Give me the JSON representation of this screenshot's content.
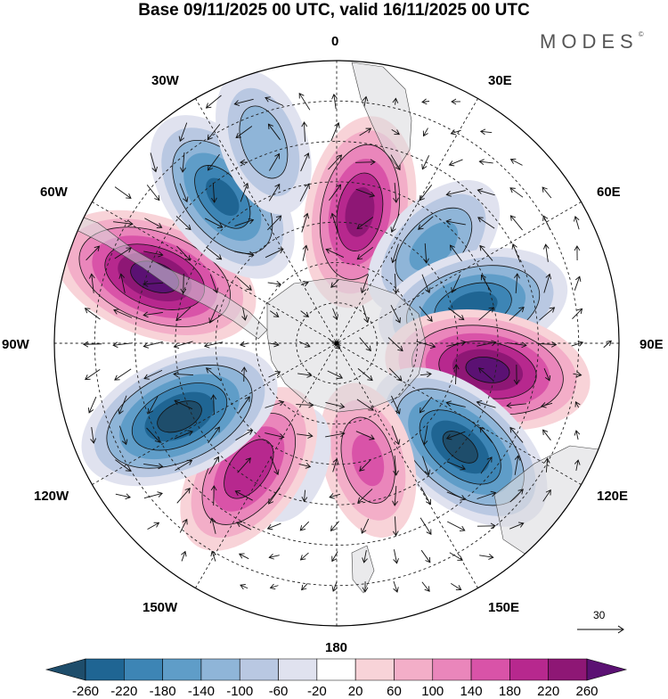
{
  "title": "Base 09/11/2025 00 UTC, valid 16/11/2025 00 UTC",
  "brand": "MODES",
  "brand_mark": "©",
  "longitude_labels": {
    "lon_0": "0",
    "lon_30e": "30E",
    "lon_60e": "60E",
    "lon_90e": "90E",
    "lon_120e": "120E",
    "lon_150e": "150E",
    "lon_180": "180",
    "lon_150w": "150W",
    "lon_120w": "120W",
    "lon_90w": "90W",
    "lon_60w": "60W",
    "lon_30w": "30W"
  },
  "vector_scale_label": "30",
  "colorbar": {
    "tick_labels": [
      "-260",
      "-220",
      "-180",
      "-140",
      "-100",
      "-60",
      "-20",
      "20",
      "60",
      "100",
      "140",
      "180",
      "220",
      "260"
    ],
    "colors": [
      "#1e4d6b",
      "#1f6593",
      "#3d85b5",
      "#5f9dc8",
      "#8fb5d8",
      "#b9c8e2",
      "#e0e2ef",
      "#ffffff",
      "#f8d3d8",
      "#f3aec8",
      "#ea86bb",
      "#d953a8",
      "#b7288e",
      "#8e1775",
      "#5b1173"
    ]
  },
  "chart_data": {
    "type": "heatmap",
    "projection": "south polar stereographic",
    "title": "Base 09/11/2025 00 UTC, valid 16/11/2025 00 UTC",
    "levels": [
      -260,
      -220,
      -180,
      -140,
      -100,
      -60,
      -20,
      20,
      60,
      100,
      140,
      180,
      220,
      260
    ],
    "anomaly_centers": [
      {
        "lon": 10,
        "lat": -57,
        "value": 230
      },
      {
        "lon": 45,
        "lat": -56,
        "value": -150
      },
      {
        "lon": 75,
        "lat": -55,
        "value": -230
      },
      {
        "lon": 100,
        "lat": -52,
        "value": 265
      },
      {
        "lon": 130,
        "lat": -50,
        "value": -260
      },
      {
        "lon": 165,
        "lat": -60,
        "value": 140
      },
      {
        "lon": -160,
        "lat": -58,
        "value": -40
      },
      {
        "lon": -145,
        "lat": -52,
        "value": 210
      },
      {
        "lon": -115,
        "lat": -47,
        "value": -270
      },
      {
        "lon": -70,
        "lat": -42,
        "value": 275
      },
      {
        "lon": -38,
        "lat": -44,
        "value": -220
      },
      {
        "lon": -20,
        "lat": -37,
        "value": -120
      }
    ],
    "vector_reference": 30
  }
}
